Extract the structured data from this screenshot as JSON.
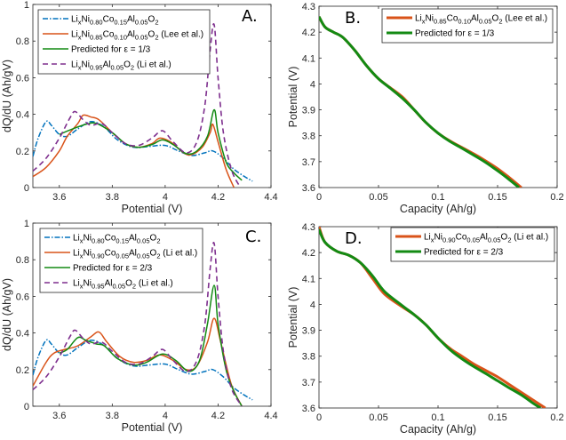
{
  "colors": {
    "blue": "#0072BD",
    "orange": "#D95319",
    "green": "#138a13",
    "purple": "#7E2F8E",
    "axis": "#262626",
    "grid_box": "#7f7f7f"
  },
  "chart_data": [
    {
      "panel": "A.",
      "type": "line",
      "xlabel": "Potential (V)",
      "ylabel": "dQ/dU (Ah/gV)",
      "xlim": [
        3.5,
        4.4
      ],
      "ylim": [
        0,
        1
      ],
      "xticks": [
        "3.6",
        "3.8",
        "4",
        "4.2",
        "4.4"
      ],
      "yticks": [
        "0",
        "0.2",
        "0.4",
        "0.6",
        "0.8",
        "1"
      ],
      "legend_placement": "top-left",
      "series": [
        {
          "name": [
            [
              "Li",
              ""
            ],
            [
              "x",
              "sub"
            ],
            [
              "Ni",
              ""
            ],
            [
              "0.80",
              "sub"
            ],
            [
              "Co",
              ""
            ],
            [
              "0.15",
              "sub"
            ],
            [
              "Al",
              ""
            ],
            [
              "0.05",
              "sub"
            ],
            [
              "O",
              ""
            ],
            [
              "2",
              "sub"
            ]
          ],
          "color": "blue",
          "style": "dashdot",
          "x": [
            3.5,
            3.52,
            3.55,
            3.57,
            3.6,
            3.63,
            3.67,
            3.72,
            3.77,
            3.82,
            3.88,
            3.94,
            4.0,
            4.05,
            4.1,
            4.15,
            4.18,
            4.22,
            4.26,
            4.3,
            4.33
          ],
          "y": [
            0.17,
            0.27,
            0.36,
            0.34,
            0.29,
            0.28,
            0.32,
            0.36,
            0.33,
            0.26,
            0.22,
            0.225,
            0.23,
            0.2,
            0.175,
            0.19,
            0.2,
            0.16,
            0.1,
            0.06,
            0.035
          ]
        },
        {
          "name": [
            [
              "Li",
              ""
            ],
            [
              "x",
              "sub"
            ],
            [
              "Ni",
              ""
            ],
            [
              "0.85",
              "sub"
            ],
            [
              "Co",
              ""
            ],
            [
              "0.10",
              "sub"
            ],
            [
              "Al",
              ""
            ],
            [
              "0.05",
              "sub"
            ],
            [
              "O",
              ""
            ],
            [
              "2",
              "sub"
            ],
            [
              " (Lee et al.)",
              ""
            ]
          ],
          "color": "orange",
          "style": "solid",
          "x": [
            3.5,
            3.55,
            3.6,
            3.63,
            3.67,
            3.69,
            3.72,
            3.75,
            3.8,
            3.85,
            3.9,
            3.95,
            3.98,
            4.02,
            4.07,
            4.1,
            4.14,
            4.17,
            4.18,
            4.2,
            4.23,
            4.26
          ],
          "y": [
            0.06,
            0.11,
            0.2,
            0.28,
            0.35,
            0.395,
            0.385,
            0.37,
            0.3,
            0.24,
            0.22,
            0.24,
            0.27,
            0.25,
            0.19,
            0.18,
            0.22,
            0.3,
            0.345,
            0.25,
            0.1,
            0.0
          ]
        },
        {
          "name": [
            [
              "Predicted for ε = 1/3",
              ""
            ]
          ],
          "color": "green",
          "style": "solid",
          "x": [
            3.6,
            3.65,
            3.7,
            3.74,
            3.8,
            3.85,
            3.9,
            3.95,
            3.99,
            4.03,
            4.08,
            4.12,
            4.16,
            4.185,
            4.2,
            4.23,
            4.26,
            4.29
          ],
          "y": [
            0.29,
            0.32,
            0.345,
            0.35,
            0.3,
            0.24,
            0.22,
            0.235,
            0.26,
            0.235,
            0.185,
            0.2,
            0.28,
            0.425,
            0.3,
            0.14,
            0.08,
            0.04
          ]
        },
        {
          "name": [
            [
              "Li",
              ""
            ],
            [
              "x",
              "sub"
            ],
            [
              "Ni",
              ""
            ],
            [
              "0.95",
              "sub"
            ],
            [
              "Al",
              ""
            ],
            [
              "0.05",
              "sub"
            ],
            [
              "O",
              ""
            ],
            [
              "2",
              "sub"
            ],
            [
              " (Li et al.)",
              ""
            ]
          ],
          "color": "purple",
          "style": "dashed",
          "x": [
            3.5,
            3.55,
            3.6,
            3.64,
            3.66,
            3.69,
            3.72,
            3.76,
            3.8,
            3.85,
            3.9,
            3.95,
            3.99,
            4.03,
            4.08,
            4.12,
            4.15,
            4.17,
            4.185,
            4.2,
            4.22,
            4.25,
            4.28
          ],
          "y": [
            0.09,
            0.16,
            0.27,
            0.38,
            0.415,
            0.37,
            0.34,
            0.35,
            0.3,
            0.24,
            0.23,
            0.27,
            0.31,
            0.25,
            0.19,
            0.25,
            0.45,
            0.75,
            0.89,
            0.6,
            0.3,
            0.1,
            0.01
          ]
        }
      ]
    },
    {
      "panel": "B.",
      "type": "line",
      "xlabel": "Capacity (Ah/g)",
      "ylabel": "Potential (V)",
      "xlim": [
        0,
        0.2
      ],
      "ylim": [
        3.6,
        4.3
      ],
      "xticks": [
        "0",
        "0.05",
        "0.1",
        "0.15",
        "0.2"
      ],
      "yticks": [
        "3.6",
        "3.7",
        "3.8",
        "3.9",
        "4",
        "4.1",
        "4.2",
        "4.3"
      ],
      "legend_placement": "top-right",
      "series": [
        {
          "name": [
            [
              "Li",
              ""
            ],
            [
              "x",
              "sub"
            ],
            [
              "Ni",
              ""
            ],
            [
              "0.85",
              "sub"
            ],
            [
              "Co",
              ""
            ],
            [
              "0.10",
              "sub"
            ],
            [
              "Al",
              ""
            ],
            [
              "0.05",
              "sub"
            ],
            [
              "O",
              ""
            ],
            [
              "2",
              "sub"
            ],
            [
              " (Lee et al.)",
              ""
            ]
          ],
          "color": "orange",
          "style": "thick",
          "x": [
            0,
            0.005,
            0.012,
            0.02,
            0.03,
            0.04,
            0.05,
            0.06,
            0.07,
            0.08,
            0.09,
            0.1,
            0.11,
            0.12,
            0.13,
            0.14,
            0.15,
            0.16,
            0.17
          ],
          "y": [
            4.26,
            4.22,
            4.2,
            4.18,
            4.13,
            4.07,
            4.02,
            3.985,
            3.95,
            3.9,
            3.85,
            3.81,
            3.78,
            3.755,
            3.73,
            3.703,
            3.673,
            3.638,
            3.6
          ]
        },
        {
          "name": [
            [
              "Predicted for ε = 1/3",
              ""
            ]
          ],
          "color": "green",
          "style": "thick",
          "x": [
            0,
            0.005,
            0.012,
            0.02,
            0.03,
            0.04,
            0.05,
            0.06,
            0.07,
            0.08,
            0.09,
            0.1,
            0.11,
            0.12,
            0.13,
            0.14,
            0.15,
            0.16,
            0.168
          ],
          "y": [
            4.26,
            4.22,
            4.2,
            4.18,
            4.13,
            4.07,
            4.02,
            3.983,
            3.945,
            3.9,
            3.85,
            3.81,
            3.778,
            3.752,
            3.725,
            3.697,
            3.665,
            3.63,
            3.6
          ]
        }
      ]
    },
    {
      "panel": "C.",
      "type": "line",
      "xlabel": "Potential (V)",
      "ylabel": "dQ/dU (Ah/gV)",
      "xlim": [
        3.5,
        4.4
      ],
      "ylim": [
        0,
        1
      ],
      "xticks": [
        "3.6",
        "3.8",
        "4",
        "4.2",
        "4.4"
      ],
      "yticks": [
        "0",
        "0.2",
        "0.4",
        "0.6",
        "0.8",
        "1"
      ],
      "legend_placement": "top-left",
      "series": [
        {
          "name": [
            [
              "Li",
              ""
            ],
            [
              "x",
              "sub"
            ],
            [
              "Ni",
              ""
            ],
            [
              "0.80",
              "sub"
            ],
            [
              "Co",
              ""
            ],
            [
              "0.15",
              "sub"
            ],
            [
              "Al",
              ""
            ],
            [
              "0.05",
              "sub"
            ],
            [
              "O",
              ""
            ],
            [
              "2",
              "sub"
            ]
          ],
          "color": "blue",
          "style": "dashdot",
          "x": [
            3.5,
            3.52,
            3.55,
            3.57,
            3.6,
            3.63,
            3.67,
            3.72,
            3.77,
            3.82,
            3.88,
            3.94,
            4.0,
            4.05,
            4.1,
            4.15,
            4.18,
            4.22,
            4.26,
            4.3,
            4.33
          ],
          "y": [
            0.17,
            0.27,
            0.36,
            0.34,
            0.29,
            0.28,
            0.32,
            0.36,
            0.33,
            0.26,
            0.22,
            0.225,
            0.23,
            0.2,
            0.175,
            0.19,
            0.2,
            0.16,
            0.1,
            0.06,
            0.035
          ]
        },
        {
          "name": [
            [
              "Li",
              ""
            ],
            [
              "x",
              "sub"
            ],
            [
              "Ni",
              ""
            ],
            [
              "0.90",
              "sub"
            ],
            [
              "Co",
              ""
            ],
            [
              "0.05",
              "sub"
            ],
            [
              "Al",
              ""
            ],
            [
              "0.05",
              "sub"
            ],
            [
              "O",
              ""
            ],
            [
              "2",
              "sub"
            ],
            [
              " (Li et al.)",
              ""
            ]
          ],
          "color": "orange",
          "style": "solid",
          "x": [
            3.5,
            3.55,
            3.58,
            3.62,
            3.67,
            3.72,
            3.75,
            3.78,
            3.83,
            3.88,
            3.93,
            3.98,
            4.03,
            4.08,
            4.12,
            4.16,
            4.185,
            4.21,
            4.25,
            4.29
          ],
          "y": [
            0.11,
            0.24,
            0.29,
            0.31,
            0.33,
            0.38,
            0.405,
            0.35,
            0.27,
            0.24,
            0.25,
            0.28,
            0.25,
            0.2,
            0.22,
            0.35,
            0.48,
            0.35,
            0.12,
            0.0
          ]
        },
        {
          "name": [
            [
              "Predicted for ε = 2/3",
              ""
            ]
          ],
          "color": "green",
          "style": "solid",
          "x": [
            3.6,
            3.63,
            3.67,
            3.7,
            3.74,
            3.77,
            3.82,
            3.88,
            3.93,
            3.99,
            4.04,
            4.09,
            4.13,
            4.16,
            4.185,
            4.2,
            4.23,
            4.26,
            4.29
          ],
          "y": [
            0.29,
            0.31,
            0.375,
            0.36,
            0.34,
            0.33,
            0.26,
            0.225,
            0.24,
            0.285,
            0.25,
            0.19,
            0.25,
            0.45,
            0.66,
            0.45,
            0.2,
            0.08,
            0.0
          ]
        },
        {
          "name": [
            [
              "Li",
              ""
            ],
            [
              "x",
              "sub"
            ],
            [
              "Ni",
              ""
            ],
            [
              "0.95",
              "sub"
            ],
            [
              "Al",
              ""
            ],
            [
              "0.05",
              "sub"
            ],
            [
              "O",
              ""
            ],
            [
              "2",
              "sub"
            ],
            [
              " (Li et al.)",
              ""
            ]
          ],
          "color": "purple",
          "style": "dashed",
          "x": [
            3.5,
            3.55,
            3.6,
            3.64,
            3.66,
            3.69,
            3.72,
            3.76,
            3.8,
            3.85,
            3.9,
            3.95,
            3.99,
            4.03,
            4.08,
            4.12,
            4.15,
            4.17,
            4.185,
            4.2,
            4.22,
            4.25,
            4.29
          ],
          "y": [
            0.09,
            0.16,
            0.27,
            0.38,
            0.415,
            0.37,
            0.34,
            0.35,
            0.3,
            0.24,
            0.23,
            0.27,
            0.31,
            0.25,
            0.19,
            0.25,
            0.45,
            0.75,
            0.89,
            0.6,
            0.3,
            0.1,
            0.0
          ]
        }
      ]
    },
    {
      "panel": "D.",
      "type": "line",
      "xlabel": "Capacity (Ah/g)",
      "ylabel": "Potential (V)",
      "xlim": [
        0,
        0.2
      ],
      "ylim": [
        3.6,
        4.3
      ],
      "xticks": [
        "0",
        "0.05",
        "0.1",
        "0.15",
        "0.2"
      ],
      "yticks": [
        "3.6",
        "3.7",
        "3.8",
        "3.9",
        "4",
        "4.1",
        "4.2",
        "4.3"
      ],
      "legend_placement": "top-right",
      "series": [
        {
          "name": [
            [
              "Li",
              ""
            ],
            [
              "x",
              "sub"
            ],
            [
              "Ni",
              ""
            ],
            [
              "0.90",
              "sub"
            ],
            [
              "Co",
              ""
            ],
            [
              "0.05",
              "sub"
            ],
            [
              "Al",
              ""
            ],
            [
              "0.05",
              "sub"
            ],
            [
              "O",
              ""
            ],
            [
              "2",
              "sub"
            ],
            [
              " (Li et al.)",
              ""
            ]
          ],
          "color": "orange",
          "style": "thick",
          "x": [
            0,
            0.005,
            0.015,
            0.025,
            0.035,
            0.045,
            0.055,
            0.07,
            0.08,
            0.09,
            0.1,
            0.11,
            0.12,
            0.13,
            0.14,
            0.15,
            0.16,
            0.17,
            0.18,
            0.19
          ],
          "y": [
            4.3,
            4.24,
            4.205,
            4.19,
            4.16,
            4.1,
            4.04,
            3.99,
            3.96,
            3.92,
            3.87,
            3.83,
            3.8,
            3.77,
            3.745,
            3.72,
            3.69,
            3.66,
            3.63,
            3.6
          ]
        },
        {
          "name": [
            [
              "Predicted for ε = 2/3",
              ""
            ]
          ],
          "color": "green",
          "style": "thick",
          "x": [
            0,
            0.005,
            0.015,
            0.025,
            0.035,
            0.045,
            0.055,
            0.07,
            0.08,
            0.09,
            0.1,
            0.11,
            0.12,
            0.13,
            0.14,
            0.15,
            0.16,
            0.17,
            0.18,
            0.186
          ],
          "y": [
            4.29,
            4.24,
            4.205,
            4.19,
            4.16,
            4.11,
            4.05,
            3.995,
            3.96,
            3.92,
            3.87,
            3.825,
            3.79,
            3.76,
            3.733,
            3.705,
            3.677,
            3.65,
            3.618,
            3.6
          ]
        }
      ]
    }
  ]
}
